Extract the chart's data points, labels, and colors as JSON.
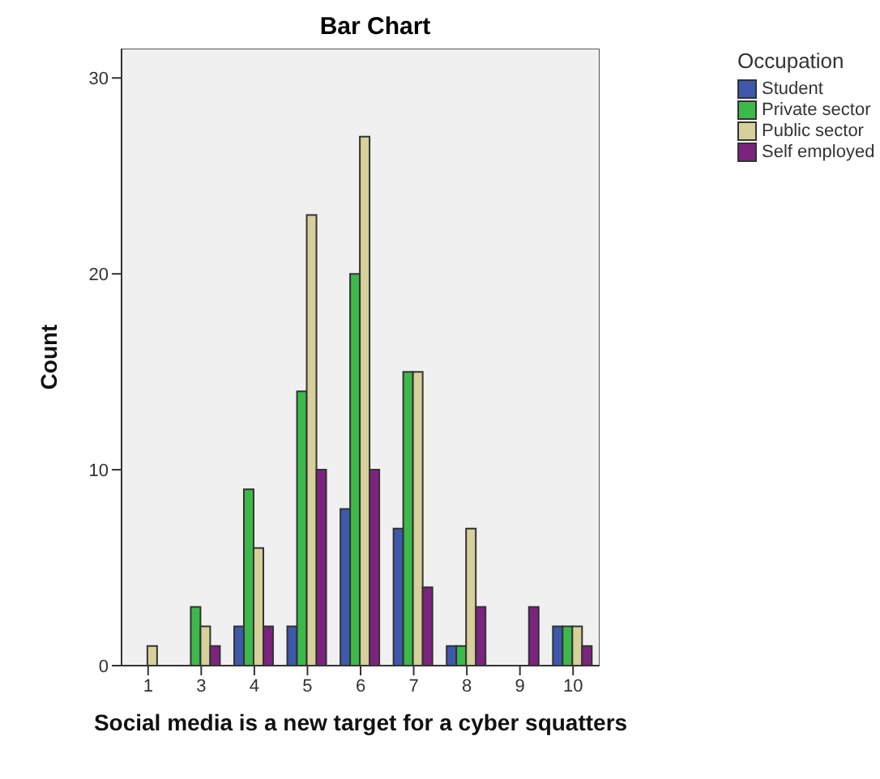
{
  "chart_data": {
    "type": "bar",
    "title": "Bar Chart",
    "xlabel": "Social media is a new target for a cyber squatters",
    "ylabel": "Count",
    "legend_title": "Occupation",
    "categories": [
      "1",
      "3",
      "4",
      "5",
      "6",
      "7",
      "8",
      "9",
      "10"
    ],
    "series": [
      {
        "name": "Student",
        "color": "#3e58ac",
        "values": [
          0,
          0,
          2,
          2,
          8,
          7,
          1,
          0,
          2
        ]
      },
      {
        "name": "Private sector",
        "color": "#3cb94a",
        "values": [
          0,
          3,
          9,
          14,
          20,
          15,
          1,
          0,
          2
        ]
      },
      {
        "name": "Public sector",
        "color": "#d6d09a",
        "values": [
          1,
          2,
          6,
          23,
          27,
          15,
          7,
          0,
          2
        ]
      },
      {
        "name": "Self employed",
        "color": "#7c2380",
        "values": [
          0,
          1,
          2,
          10,
          10,
          4,
          3,
          3,
          1
        ]
      }
    ],
    "ylim": [
      0,
      31.5
    ],
    "yticks": [
      0,
      10,
      20,
      30
    ],
    "grid": false,
    "legend": "top right"
  }
}
